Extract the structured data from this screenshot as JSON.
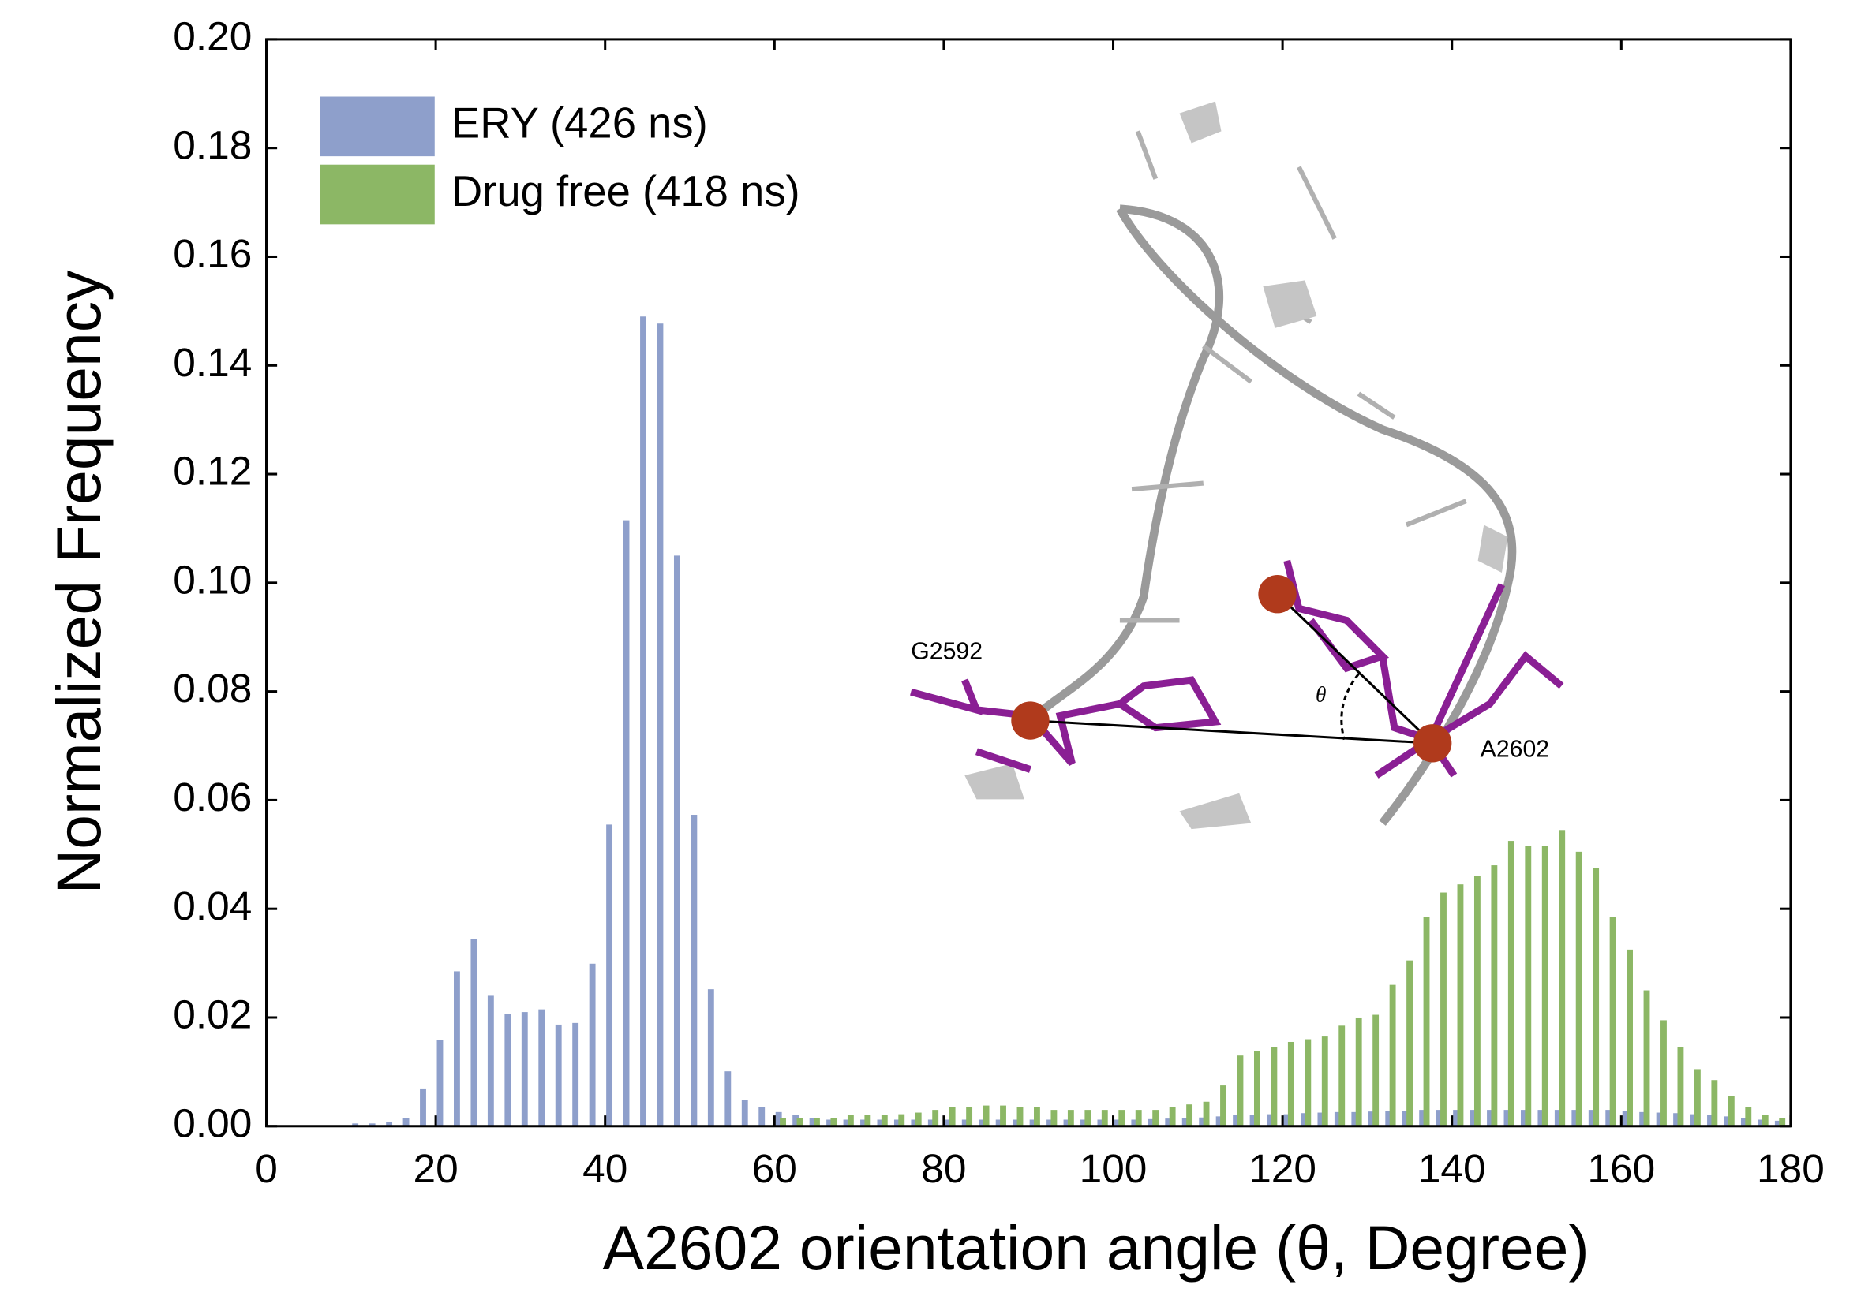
{
  "chart_data": {
    "type": "bar",
    "xlabel": "A2602 orientation angle (θ, Degree)",
    "ylabel": "Normalized Frequency",
    "xlim": [
      0,
      180
    ],
    "ylim": [
      0,
      0.2
    ],
    "xticks": [
      0,
      20,
      40,
      60,
      80,
      100,
      120,
      140,
      160,
      180
    ],
    "yticks": [
      {
        "value": 0,
        "label": "0.00"
      },
      {
        "value": 0.02,
        "label": "0.02"
      },
      {
        "value": 0.04,
        "label": "0.04"
      },
      {
        "value": 0.06,
        "label": "0.06"
      },
      {
        "value": 0.08,
        "label": "0.08"
      },
      {
        "value": 0.1,
        "label": "0.10"
      },
      {
        "value": 0.12,
        "label": "0.12"
      },
      {
        "value": 0.14,
        "label": "0.14"
      },
      {
        "value": 0.16,
        "label": "0.16"
      },
      {
        "value": 0.18,
        "label": "0.18"
      },
      {
        "value": 0.2,
        "label": "0.20"
      }
    ],
    "legend": "upper left",
    "series": [
      {
        "name": "ERY (426 ns)",
        "color": "#8e9fcb",
        "x": [
          10.5,
          12.5,
          14.5,
          16.5,
          18.5,
          20.5,
          22.5,
          24.5,
          26.5,
          28.5,
          30.5,
          32.5,
          34.5,
          36.5,
          38.5,
          40.5,
          42.5,
          44.5,
          46.5,
          48.5,
          50.5,
          52.5,
          54.5,
          56.5,
          58.5,
          60.5,
          62.5,
          64.5,
          66.5,
          68.5,
          70.5,
          72.5,
          74.5,
          76.5,
          78.5,
          80.5,
          82.5,
          84.5,
          86.5,
          88.5,
          90.5,
          92.5,
          94.5,
          96.5,
          98.5,
          100.5,
          102.5,
          104.5,
          106.5,
          108.5,
          110.5,
          112.5,
          114.5,
          116.5,
          118.5,
          120.5,
          122.5,
          124.5,
          126.5,
          128.5,
          130.5,
          132.5,
          134.5,
          136.5,
          138.5,
          140.5,
          142.5,
          144.5,
          146.5,
          148.5,
          150.5,
          152.5,
          154.5,
          156.5,
          158.5,
          160.5,
          162.5,
          164.5,
          166.5,
          168.5,
          170.5,
          172.5,
          174.5,
          176.5,
          178.5
        ],
        "values": [
          0.0005,
          0.0005,
          0.0007,
          0.0015,
          0.0068,
          0.0158,
          0.0285,
          0.0345,
          0.024,
          0.0206,
          0.021,
          0.0215,
          0.0187,
          0.019,
          0.0299,
          0.0555,
          0.1115,
          0.149,
          0.1477,
          0.105,
          0.0573,
          0.0252,
          0.0101,
          0.0048,
          0.0035,
          0.0026,
          0.002,
          0.0015,
          0.0012,
          0.0012,
          0.0012,
          0.0012,
          0.0012,
          0.0012,
          0.0012,
          0.0012,
          0.0012,
          0.0012,
          0.0012,
          0.0012,
          0.0012,
          0.0012,
          0.0012,
          0.0012,
          0.0012,
          0.0012,
          0.0012,
          0.0013,
          0.0014,
          0.0015,
          0.0016,
          0.0018,
          0.002,
          0.002,
          0.0022,
          0.0022,
          0.0024,
          0.0025,
          0.0026,
          0.0026,
          0.0027,
          0.0028,
          0.0028,
          0.003,
          0.003,
          0.003,
          0.003,
          0.003,
          0.003,
          0.003,
          0.003,
          0.003,
          0.003,
          0.003,
          0.003,
          0.0028,
          0.0026,
          0.0025,
          0.0024,
          0.0022,
          0.002,
          0.0018,
          0.0015,
          0.0012,
          0.001
        ]
      },
      {
        "name": "Drug free (418 ns)",
        "color": "#8cb765",
        "x": [
          61,
          63,
          65,
          67,
          69,
          71,
          73,
          75,
          77,
          79,
          81,
          83,
          85,
          87,
          89,
          91,
          93,
          95,
          97,
          99,
          101,
          103,
          105,
          107,
          109,
          111,
          113,
          115,
          117,
          119,
          121,
          123,
          125,
          127,
          129,
          131,
          133,
          135,
          137,
          139,
          141,
          143,
          145,
          147,
          149,
          151,
          153,
          155,
          157,
          159,
          161,
          163,
          165,
          167,
          169,
          171,
          173,
          175,
          177,
          179
        ],
        "values": [
          0.0015,
          0.0015,
          0.0015,
          0.0015,
          0.002,
          0.002,
          0.002,
          0.0022,
          0.0025,
          0.003,
          0.0035,
          0.0035,
          0.0038,
          0.0038,
          0.0035,
          0.0035,
          0.003,
          0.003,
          0.003,
          0.003,
          0.003,
          0.003,
          0.003,
          0.0035,
          0.004,
          0.0045,
          0.0075,
          0.013,
          0.0138,
          0.0145,
          0.0155,
          0.016,
          0.0165,
          0.0185,
          0.02,
          0.0205,
          0.026,
          0.0305,
          0.0385,
          0.043,
          0.0445,
          0.046,
          0.048,
          0.0525,
          0.0515,
          0.0515,
          0.0545,
          0.0505,
          0.0475,
          0.0385,
          0.0325,
          0.025,
          0.0195,
          0.0145,
          0.0105,
          0.0085,
          0.0055,
          0.0035,
          0.002,
          0.0015
        ]
      }
    ]
  },
  "inset": {
    "labels": [
      "G2592",
      "A2602",
      "θ"
    ]
  }
}
